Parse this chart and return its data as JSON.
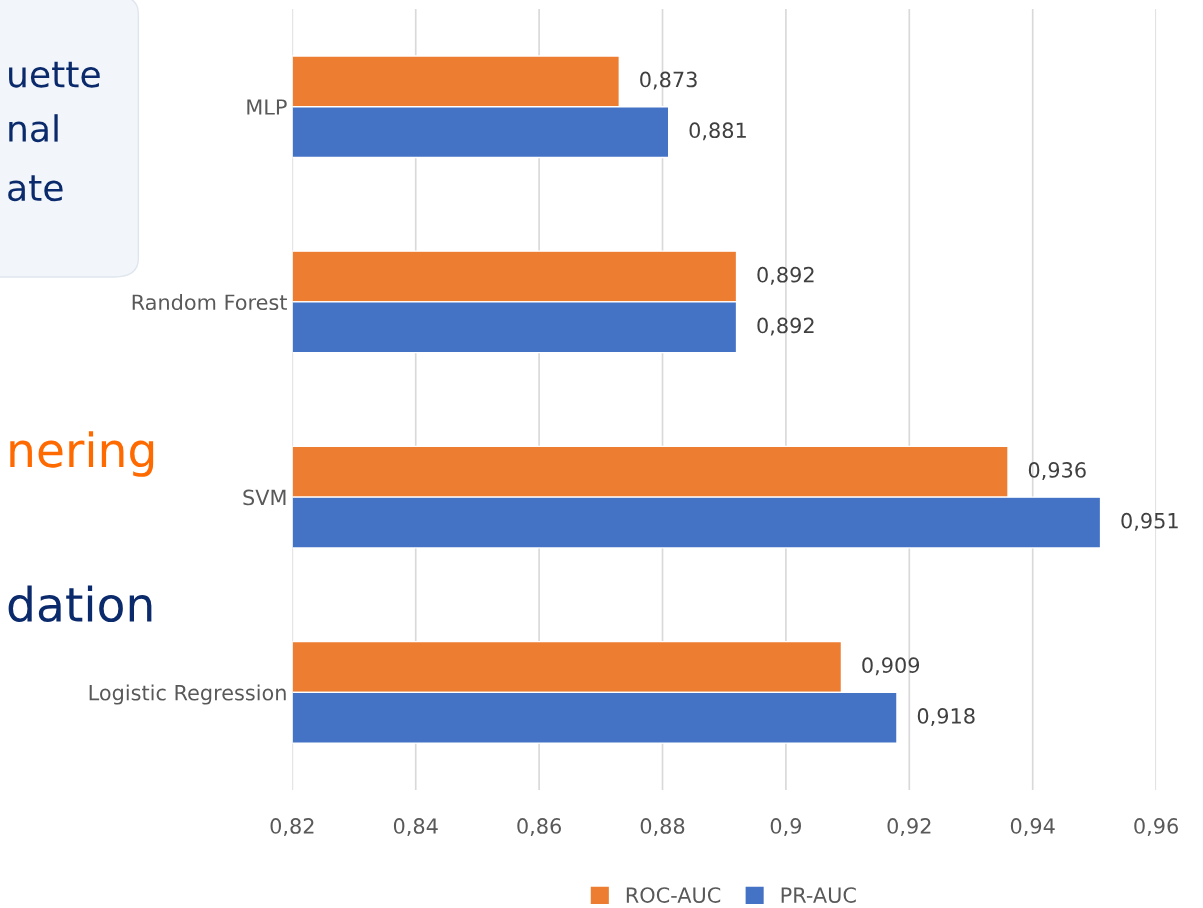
{
  "chart_data": {
    "type": "bar",
    "orientation": "horizontal",
    "categories": [
      "MLP",
      "Random Forest",
      "SVM",
      "Logistic Regression"
    ],
    "series": [
      {
        "name": "ROC-AUC",
        "color": "#ed7d31",
        "values": [
          0.873,
          0.892,
          0.936,
          0.909
        ],
        "value_labels": [
          "0,873",
          "0,892",
          "0,936",
          "0,909"
        ]
      },
      {
        "name": "PR-AUC",
        "color": "#4472c4",
        "values": [
          0.881,
          0.892,
          0.951,
          0.918
        ],
        "value_labels": [
          "0,881",
          "0,892",
          "0,951",
          "0,918"
        ]
      }
    ],
    "xlim": [
      0.82,
      0.96
    ],
    "xticks": [
      {
        "value": 0.82,
        "label": "0,82"
      },
      {
        "value": 0.84,
        "label": "0,84"
      },
      {
        "value": 0.86,
        "label": "0,86"
      },
      {
        "value": 0.88,
        "label": "0,88"
      },
      {
        "value": 0.9,
        "label": "0,9"
      },
      {
        "value": 0.92,
        "label": "0,92"
      },
      {
        "value": 0.94,
        "label": "0,94"
      },
      {
        "value": 0.96,
        "label": "0,96"
      }
    ],
    "grid": "x",
    "legend": "bottom",
    "annotations": [
      "uette",
      "nal",
      "ate",
      "nering",
      "dation"
    ]
  }
}
